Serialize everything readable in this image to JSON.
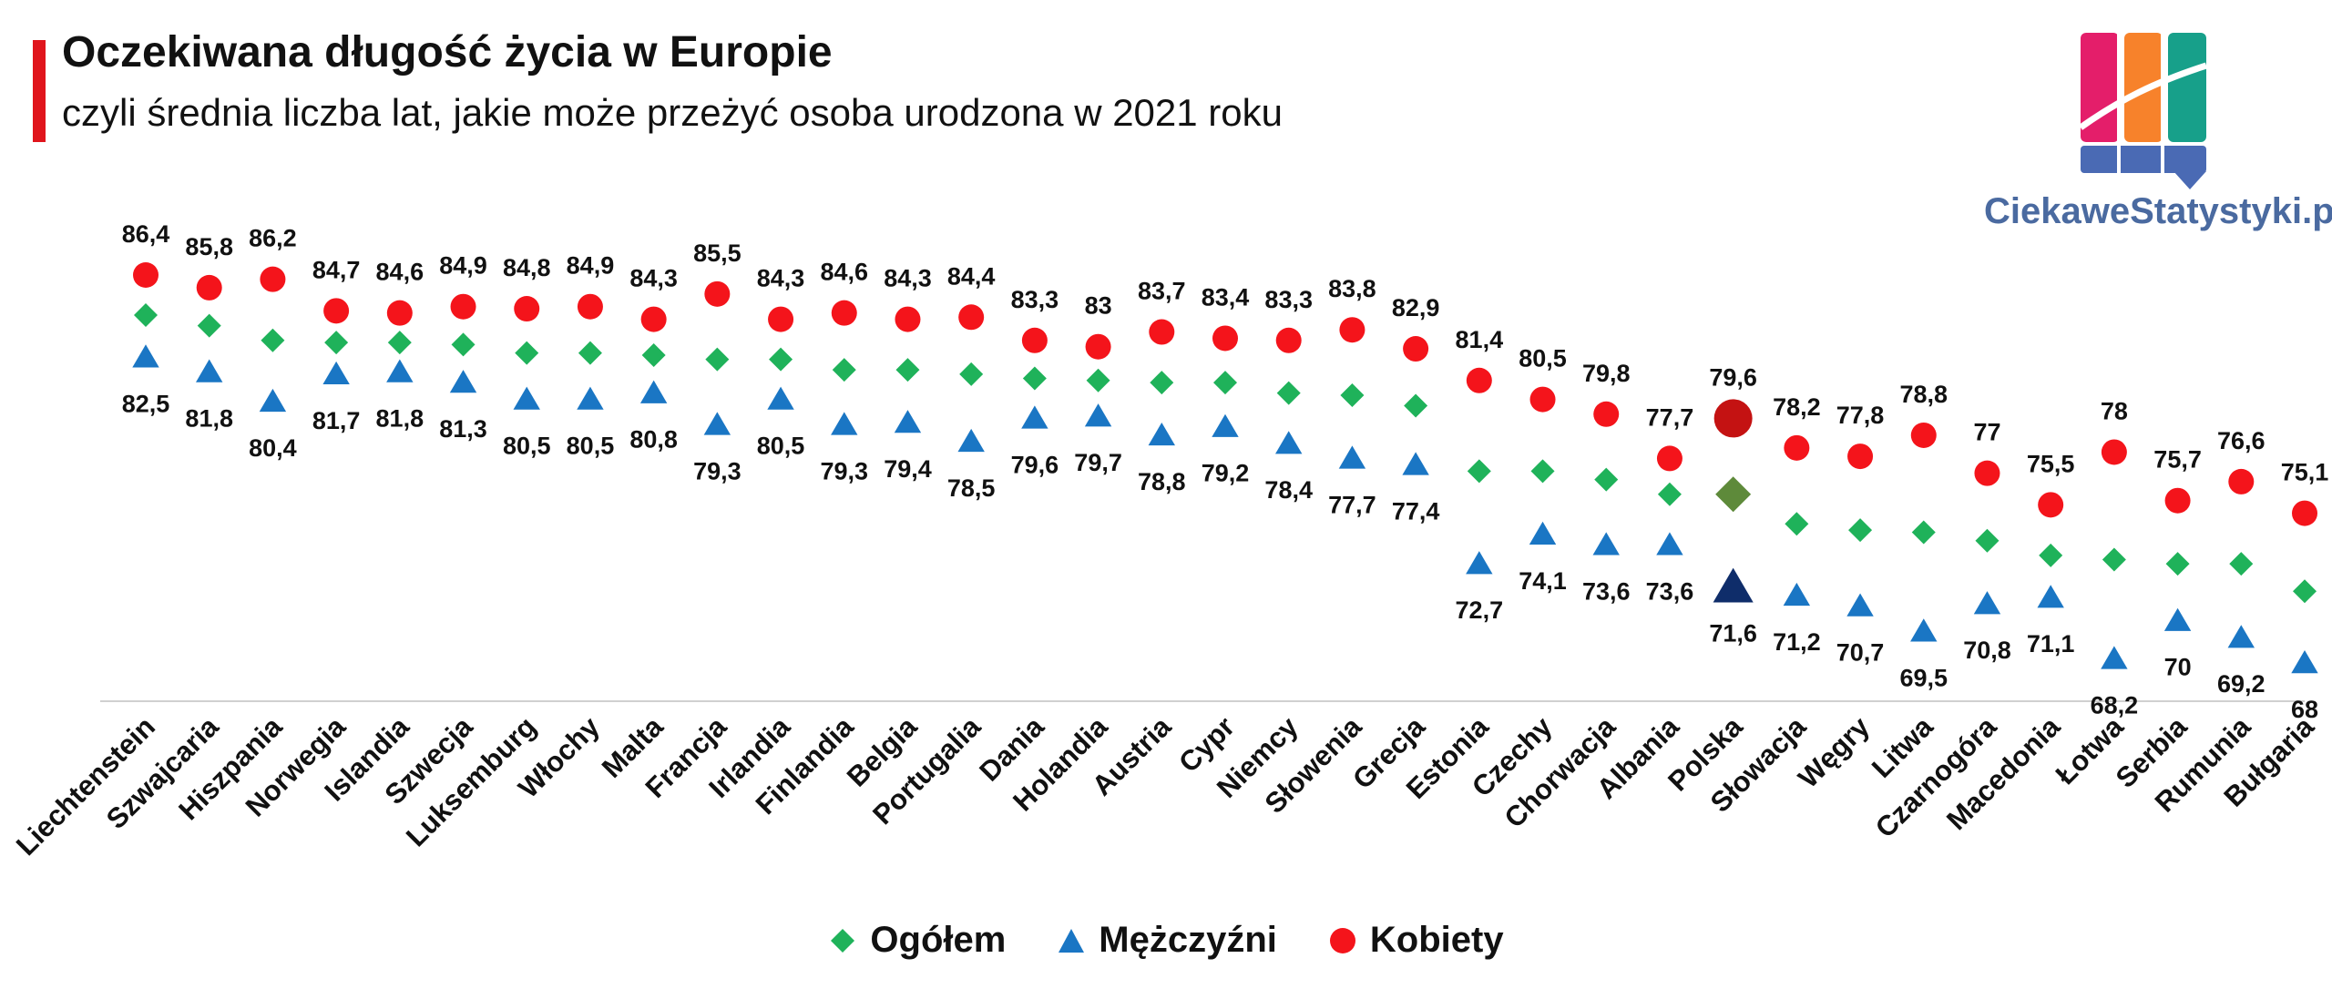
{
  "header": {
    "title": "Oczekiwana długość życia w Europie",
    "subtitle": "czyli średnia liczba lat, jakie może przeżyć osoba urodzona w 2021 roku",
    "brand": "CiekaweStatystyki.pl",
    "accent_color": "#e0151c"
  },
  "chart_data": {
    "type": "scatter",
    "title": "Oczekiwana długość życia w Europie",
    "ylim": [
      65,
      88
    ],
    "highlight": "Polska",
    "categories": [
      "Liechtenstein",
      "Szwajcaria",
      "Hiszpania",
      "Norwegia",
      "Islandia",
      "Szwecja",
      "Luksemburg",
      "Włochy",
      "Malta",
      "Francja",
      "Irlandia",
      "Finlandia",
      "Belgia",
      "Portugalia",
      "Dania",
      "Holandia",
      "Austria",
      "Cypr",
      "Niemcy",
      "Słowenia",
      "Grecja",
      "Estonia",
      "Czechy",
      "Chorwacja",
      "Albania",
      "Polska",
      "Słowacja",
      "Węgry",
      "Litwa",
      "Czarnogóra",
      "Macedonia",
      "Łotwa",
      "Serbia",
      "Rumunia",
      "Bułgaria"
    ],
    "series": [
      {
        "name": "Ogółem",
        "marker": "diamond",
        "color": "#1fb25a",
        "values": [
          84.5,
          84.0,
          83.3,
          83.2,
          83.2,
          83.1,
          82.7,
          82.7,
          82.6,
          82.4,
          82.4,
          81.9,
          81.9,
          81.7,
          81.5,
          81.4,
          81.3,
          81.3,
          80.8,
          80.7,
          80.2,
          77.1,
          77.1,
          76.7,
          76.0,
          76.0,
          74.6,
          74.3,
          74.2,
          73.8,
          73.1,
          72.9,
          72.7,
          72.7,
          71.4
        ],
        "show_labels": false
      },
      {
        "name": "Mężczyźni",
        "marker": "triangle",
        "color": "#1a76c4",
        "values": [
          82.5,
          81.8,
          80.4,
          81.7,
          81.8,
          81.3,
          80.5,
          80.5,
          80.8,
          79.3,
          80.5,
          79.3,
          79.4,
          78.5,
          79.6,
          79.7,
          78.8,
          79.2,
          78.4,
          77.7,
          77.4,
          72.7,
          74.1,
          73.6,
          73.6,
          71.6,
          71.2,
          70.7,
          69.5,
          70.8,
          71.1,
          68.2,
          70.0,
          69.2,
          68.0
        ],
        "labels": [
          "82,5",
          "81,8",
          "80,4",
          "81,7",
          "81,8",
          "81,3",
          "80,5",
          "80,5",
          "80,8",
          "79,3",
          "80,5",
          "79,3",
          "79,4",
          "78,5",
          "79,6",
          "79,7",
          "78,8",
          "79,2",
          "78,4",
          "77,7",
          "77,4",
          "72,7",
          "74,1",
          "73,6",
          "73,6",
          "71,6",
          "71,2",
          "70,7",
          "69,5",
          "70,8",
          "71,1",
          "68,2",
          "70",
          "69,2",
          "68"
        ]
      },
      {
        "name": "Kobiety",
        "marker": "circle",
        "color": "#f4141b",
        "values": [
          86.4,
          85.8,
          86.2,
          84.7,
          84.6,
          84.9,
          84.8,
          84.9,
          84.3,
          85.5,
          84.3,
          84.6,
          84.3,
          84.4,
          83.3,
          83.0,
          83.7,
          83.4,
          83.3,
          83.8,
          82.9,
          81.4,
          80.5,
          79.8,
          77.7,
          79.6,
          78.2,
          77.8,
          78.8,
          77.0,
          75.5,
          78.0,
          75.7,
          76.6,
          75.1
        ],
        "labels": [
          "86,4",
          "85,8",
          "86,2",
          "84,7",
          "84,6",
          "84,9",
          "84,8",
          "84,9",
          "84,3",
          "85,5",
          "84,3",
          "84,6",
          "84,3",
          "84,4",
          "83,3",
          "83",
          "83,7",
          "83,4",
          "83,3",
          "83,8",
          "82,9",
          "81,4",
          "80,5",
          "79,8",
          "77,7",
          "79,6",
          "78,2",
          "77,8",
          "78,8",
          "77",
          "75,5",
          "78",
          "75,7",
          "76,6",
          "75,1"
        ]
      }
    ],
    "highlight_colors": {
      "Ogółem": "#5e8a3a",
      "Mężczyźni": "#0f2d6a",
      "Kobiety": "#c41212"
    },
    "legend": [
      "Ogółem",
      "Mężczyźni",
      "Kobiety"
    ]
  }
}
